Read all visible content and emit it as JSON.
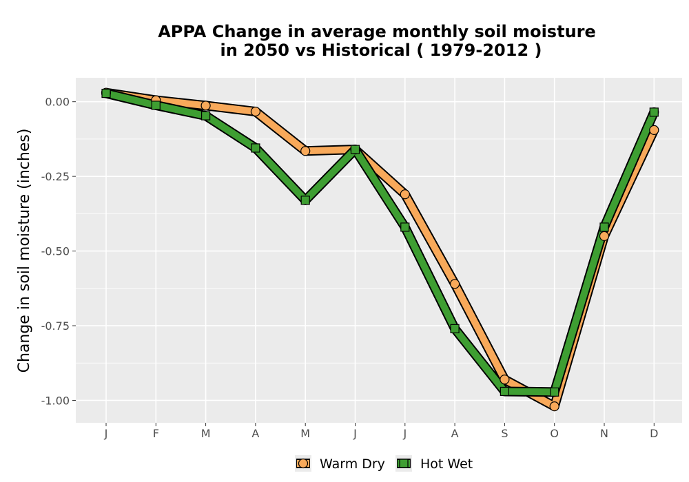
{
  "chart_data": {
    "type": "line",
    "title_line1": "APPA  Change in average monthly soil moisture",
    "title_line2": "in 2050 vs Historical ( 1979-2012 )",
    "xlabel": "",
    "ylabel": "Change in soil moisture (inches)",
    "categories": [
      "J",
      "F",
      "M",
      "A",
      "M",
      "J",
      "J",
      "A",
      "S",
      "O",
      "N",
      "D"
    ],
    "y_ticks": [
      0.0,
      -0.25,
      -0.5,
      -0.75,
      -1.0
    ],
    "y_tick_labels": [
      "0.00",
      "-0.25",
      "-0.50",
      "-0.75",
      "-1.00"
    ],
    "ylim": [
      -1.075,
      0.08
    ],
    "grid": true,
    "legend_position": "bottom",
    "series": [
      {
        "name": "Warm Dry",
        "marker": "circle",
        "color": "#F8A95A",
        "values": [
          0.03,
          0.005,
          -0.013,
          -0.033,
          -0.165,
          -0.16,
          -0.31,
          -0.61,
          -0.93,
          -1.02,
          -0.45,
          -0.095
        ]
      },
      {
        "name": "Hot Wet",
        "marker": "square",
        "color": "#3E9E32",
        "values": [
          0.028,
          -0.012,
          -0.047,
          -0.155,
          -0.33,
          -0.16,
          -0.42,
          -0.76,
          -0.97,
          -0.972,
          -0.42,
          -0.035
        ]
      }
    ]
  }
}
